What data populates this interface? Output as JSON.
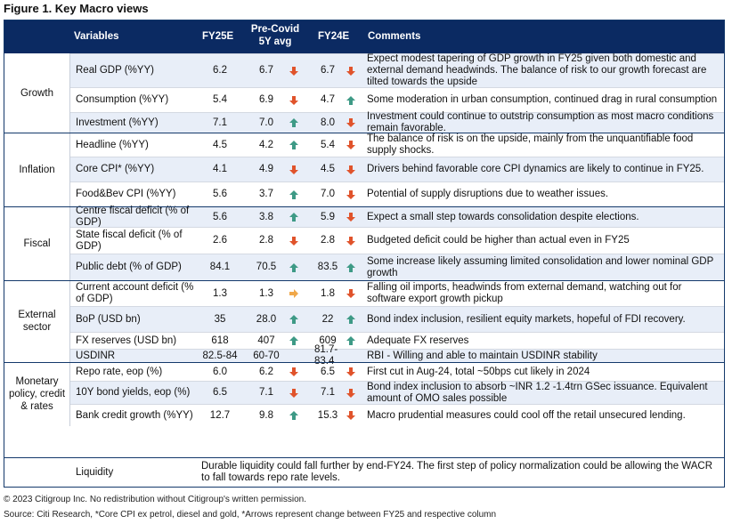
{
  "title": "Figure 1. Key Macro views",
  "header": {
    "variables": "Variables",
    "fy25e": "FY25E",
    "precovid_line1": "Pre-Covid",
    "precovid_line2": "5Y avg",
    "fy24e": "FY24E",
    "comments": "Comments"
  },
  "colors": {
    "down": "#e0532b",
    "up": "#3e9a86",
    "neutral": "#f0a84a",
    "header_bg": "#0b2a62",
    "shade": "#e8eef8"
  },
  "groups": [
    {
      "label": "Growth"
    },
    {
      "label": "Inflation"
    },
    {
      "label": "Fiscal"
    },
    {
      "label": "External sector"
    },
    {
      "label": "Monetary policy, credit & rates"
    }
  ],
  "rows": [
    {
      "variable": "Real GDP (%YY)",
      "fy25e": "6.2",
      "precovid": "6.7",
      "precovid_arrow": "down-arrow-icon",
      "fy24e": "6.7",
      "fy24e_arrow": "down-arrow-icon",
      "comment": "Expect modest tapering of GDP growth in FY25 given both domestic and external demand headwinds. The balance of risk to our growth forecast are tilted towards the upside"
    },
    {
      "variable": "Consumption (%YY)",
      "fy25e": "5.4",
      "precovid": "6.9",
      "precovid_arrow": "down-arrow-icon",
      "fy24e": "4.7",
      "fy24e_arrow": "up-arrow-icon",
      "comment": "Some moderation in urban consumption, continued drag in rural consumption"
    },
    {
      "variable": "Investment (%YY)",
      "fy25e": "7.1",
      "precovid": "7.0",
      "precovid_arrow": "up-arrow-icon",
      "fy24e": "8.0",
      "fy24e_arrow": "down-arrow-icon",
      "comment": "Investment could continue to outstrip consumption as most macro conditions remain favorable."
    },
    {
      "variable": "Headline (%YY)",
      "fy25e": "4.5",
      "precovid": "4.2",
      "precovid_arrow": "up-arrow-icon",
      "fy24e": "5.4",
      "fy24e_arrow": "down-arrow-icon",
      "comment": "The balance of risk is on the upside, mainly from the unquantifiable food supply shocks."
    },
    {
      "variable": "Core CPI* (%YY)",
      "fy25e": "4.1",
      "precovid": "4.9",
      "precovid_arrow": "down-arrow-icon",
      "fy24e": "4.5",
      "fy24e_arrow": "down-arrow-icon",
      "comment": "Drivers behind favorable core CPI dynamics are likely to continue in FY25."
    },
    {
      "variable": "Food&Bev CPI (%YY)",
      "fy25e": "5.6",
      "precovid": "3.7",
      "precovid_arrow": "up-arrow-icon",
      "fy24e": "7.0",
      "fy24e_arrow": "down-arrow-icon",
      "comment": "Potential of supply disruptions due to weather issues."
    },
    {
      "variable": "Centre fiscal deficit (% of GDP)",
      "fy25e": "5.6",
      "precovid": "3.8",
      "precovid_arrow": "up-arrow-icon",
      "fy24e": "5.9",
      "fy24e_arrow": "down-arrow-icon",
      "comment": "Expect a small step towards consolidation despite elections."
    },
    {
      "variable": "State fiscal deficit (% of GDP)",
      "fy25e": "2.6",
      "precovid": "2.8",
      "precovid_arrow": "down-arrow-icon",
      "fy24e": "2.8",
      "fy24e_arrow": "down-arrow-icon",
      "comment": "Budgeted deficit could be higher than actual even in FY25"
    },
    {
      "variable": "Public debt (% of GDP)",
      "fy25e": "84.1",
      "precovid": "70.5",
      "precovid_arrow": "up-arrow-icon",
      "fy24e": "83.5",
      "fy24e_arrow": "up-arrow-icon",
      "comment": "Some increase likely assuming limited consolidation and lower nominal GDP growth"
    },
    {
      "variable": "Current account deficit (% of GDP)",
      "fy25e": "1.3",
      "precovid": "1.3",
      "precovid_arrow": "right-arrow-icon",
      "fy24e": "1.8",
      "fy24e_arrow": "down-arrow-icon",
      "comment": "Falling oil imports, headwinds from external demand, watching out for software export growth pickup"
    },
    {
      "variable": "BoP (USD bn)",
      "fy25e": "35",
      "precovid": "28.0",
      "precovid_arrow": "up-arrow-icon",
      "fy24e": "22",
      "fy24e_arrow": "up-arrow-icon",
      "comment": "Bond index inclusion, resilient equity markets, hopeful of FDI recovery."
    },
    {
      "variable": "FX reserves (USD bn)",
      "fy25e": "618",
      "precovid": "407",
      "precovid_arrow": "up-arrow-icon",
      "fy24e": "609",
      "fy24e_arrow": "up-arrow-icon",
      "comment": "Adequate FX reserves"
    },
    {
      "variable": "USDINR",
      "fy25e": "82.5-84",
      "precovid": "60-70",
      "precovid_arrow": "",
      "fy24e": "81.7-83.4",
      "fy24e_arrow": "",
      "comment": "RBI - Willing and able to maintain USDINR stability"
    },
    {
      "variable": "Repo rate, eop (%)",
      "fy25e": "6.0",
      "precovid": "6.2",
      "precovid_arrow": "down-arrow-icon",
      "fy24e": "6.5",
      "fy24e_arrow": "down-arrow-icon",
      "comment": "First cut in Aug-24, total ~50bps cut likely in 2024"
    },
    {
      "variable": "10Y bond yields, eop (%)",
      "fy25e": "6.5",
      "precovid": "7.1",
      "precovid_arrow": "down-arrow-icon",
      "fy24e": "7.1",
      "fy24e_arrow": "down-arrow-icon",
      "comment": "Bond index inclusion to absorb ~INR 1.2 -1.4trn GSec issuance. Equivalent amount of OMO sales possible"
    },
    {
      "variable": "Bank credit growth (%YY)",
      "fy25e": "12.7",
      "precovid": "9.8",
      "precovid_arrow": "up-arrow-icon",
      "fy24e": "15.3",
      "fy24e_arrow": "down-arrow-icon",
      "comment": "Macro prudential measures could cool off the retail unsecured lending."
    }
  ],
  "liquidity": {
    "variable": "Liquidity",
    "comment": "Durable liquidity could fall further by end-FY24. The first step of policy normalization could be allowing the WACR to fall towards repo rate levels."
  },
  "footer": {
    "copyright": "© 2023 Citigroup Inc. No redistribution without Citigroup's written permission.",
    "source": "Source: Citi Research, *Core CPI ex petrol, diesel and gold, *Arrows represent change between FY25 and respective column"
  }
}
